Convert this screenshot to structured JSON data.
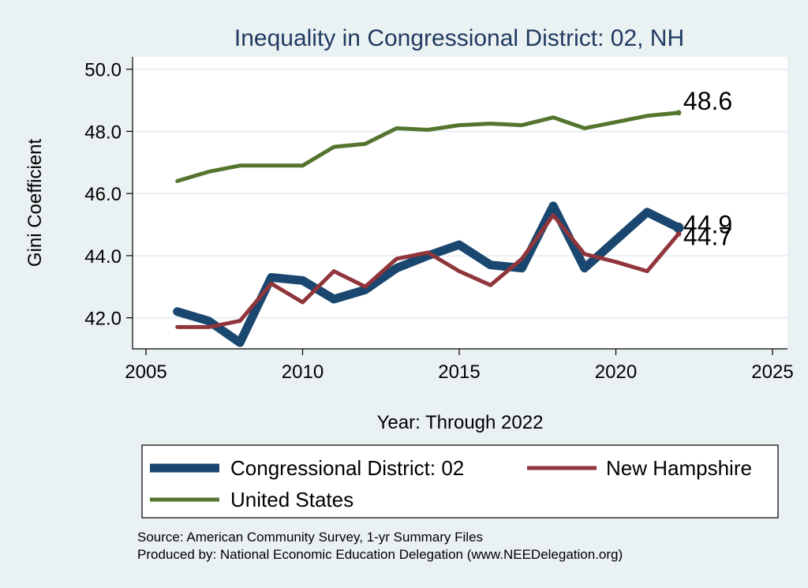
{
  "chart_data": {
    "type": "line",
    "title": "Inequality in Congressional District:  02, NH",
    "xlabel": "Year: Through 2022",
    "ylabel": "Gini Coefficient",
    "xlim": [
      2005,
      2025
    ],
    "ylim": [
      41.0,
      50.4
    ],
    "xticks": [
      2005,
      2010,
      2015,
      2020,
      2025
    ],
    "yticks": [
      42.0,
      44.0,
      46.0,
      48.0,
      50.0
    ],
    "xtick_labels": [
      "2005",
      "2010",
      "2015",
      "2020",
      "2025"
    ],
    "ytick_labels": [
      "42.0",
      "44.0",
      "46.0",
      "48.0",
      "50.0"
    ],
    "grid": true,
    "legend_position": "bottom",
    "series": [
      {
        "name": "Congressional District:  02",
        "color": "#1a476f",
        "x": [
          2006,
          2007,
          2008,
          2009,
          2010,
          2011,
          2012,
          2013,
          2014,
          2015,
          2016,
          2017,
          2018,
          2019,
          2020,
          2021,
          2022
        ],
        "values": [
          42.2,
          41.9,
          41.2,
          43.3,
          43.2,
          42.6,
          42.9,
          43.6,
          44.0,
          44.35,
          43.7,
          43.6,
          45.6,
          43.6,
          44.5,
          45.4,
          44.9
        ],
        "end_label": "44.9"
      },
      {
        "name": "New Hampshire",
        "color": "#90353b",
        "x": [
          2006,
          2007,
          2008,
          2009,
          2010,
          2011,
          2012,
          2013,
          2014,
          2015,
          2016,
          2017,
          2018,
          2019,
          2020,
          2021,
          2022
        ],
        "values": [
          41.7,
          41.7,
          41.9,
          43.1,
          42.5,
          43.5,
          43.0,
          43.9,
          44.1,
          43.5,
          43.05,
          43.9,
          45.3,
          44.05,
          43.8,
          43.5,
          44.7
        ],
        "end_label": "44.7"
      },
      {
        "name": "United States",
        "color": "#55752f",
        "x": [
          2006,
          2007,
          2008,
          2009,
          2010,
          2011,
          2012,
          2013,
          2014,
          2015,
          2016,
          2017,
          2018,
          2019,
          2020,
          2021,
          2022
        ],
        "values": [
          46.4,
          46.7,
          46.9,
          46.9,
          46.9,
          47.5,
          47.6,
          48.1,
          48.05,
          48.2,
          48.25,
          48.2,
          48.45,
          48.1,
          48.3,
          48.5,
          48.6
        ],
        "end_label": "48.6"
      }
    ],
    "notes": [
      "Source: American Community Survey, 1-yr Summary Files",
      "Produced by: National Economic Education Delegation (www.NEEDelegation.org)"
    ]
  }
}
